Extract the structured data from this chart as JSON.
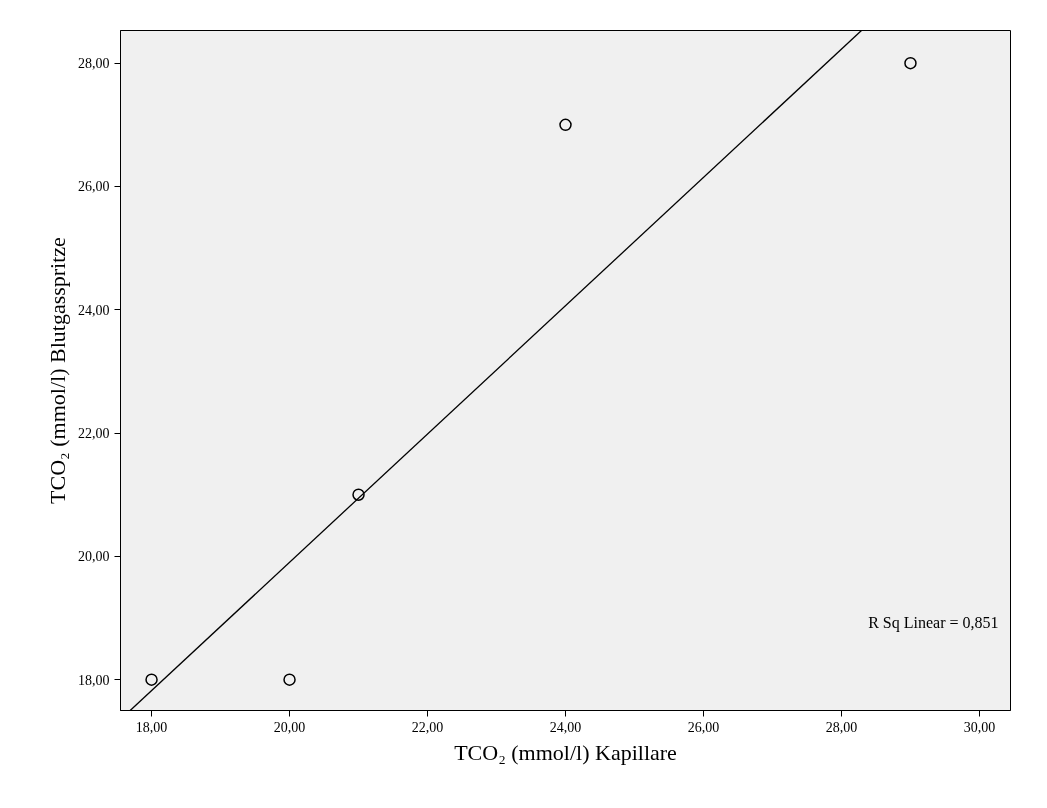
{
  "chart_data": {
    "type": "scatter",
    "xlabel": "TCO₂ (mmol/l) Kapillare",
    "ylabel": "TCO₂ (mmol/l) Blutgasspritze",
    "xlim": [
      17.55,
      30.45
    ],
    "ylim": [
      17.5,
      28.53
    ],
    "xticks": [
      {
        "value": 18,
        "label": "18,00"
      },
      {
        "value": 20,
        "label": "20,00"
      },
      {
        "value": 22,
        "label": "22,00"
      },
      {
        "value": 24,
        "label": "24,00"
      },
      {
        "value": 26,
        "label": "26,00"
      },
      {
        "value": 28,
        "label": "28,00"
      },
      {
        "value": 30,
        "label": "30,00"
      }
    ],
    "yticks": [
      {
        "value": 18,
        "label": "18,00"
      },
      {
        "value": 20,
        "label": "20,00"
      },
      {
        "value": 22,
        "label": "22,00"
      },
      {
        "value": 24,
        "label": "24,00"
      },
      {
        "value": 26,
        "label": "26,00"
      },
      {
        "value": 28,
        "label": "28,00"
      }
    ],
    "series": [
      {
        "marker": "circle",
        "color": "#000000",
        "x": [
          18,
          20,
          21,
          24,
          29
        ],
        "values": [
          18,
          18,
          21,
          27,
          28
        ]
      },
      {
        "type": "line",
        "line_style": "solid",
        "color": "#000000",
        "x": [
          17.69,
          28.29
        ],
        "values": [
          17.5,
          28.53
        ]
      }
    ],
    "annotations": [
      "R Sq Linear = 0,851"
    ],
    "grid": false
  }
}
